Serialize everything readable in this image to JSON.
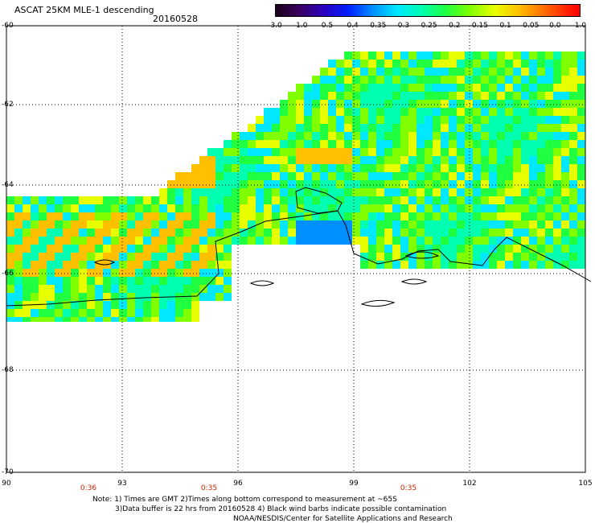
{
  "header": {
    "title": "ASCAT 25KM MLE-1 descending",
    "date": "20160528"
  },
  "colorbar": {
    "labels": [
      "-3.0",
      "-1.0",
      "-0.5",
      "-0.4",
      "-0.35",
      "-0.3",
      "-0.25",
      "-0.2",
      "-0.15",
      "-0.1",
      "-0.05",
      "0.0",
      "1.0"
    ],
    "colors": [
      "#1a0018",
      "#3a0060",
      "#2a00c0",
      "#0020ff",
      "#0090ff",
      "#00e8ff",
      "#00ffb0",
      "#20ff40",
      "#80ff00",
      "#e8ff00",
      "#ffc000",
      "#ff7000",
      "#ff2000"
    ]
  },
  "axes": {
    "lat_labels": [
      "-60",
      "-62",
      "-64",
      "-66",
      "-68",
      "-70"
    ],
    "lon_labels": [
      "90",
      "93",
      "96",
      "99",
      "102",
      "105"
    ],
    "time_labels": [
      "0:36",
      "0:35",
      "0:35"
    ]
  },
  "notes": {
    "line1": "Note: 1) Times are GMT 2)Times along bottom correspond to measurement at ~65S",
    "line2": "3)Data buffer is 22 hrs from 20160528 4) Black wind barbs indicate possible contamination",
    "line3": "NOAA/NESDIS/Center for Satellite Applications and Research"
  },
  "map": {
    "background": "#ffffff",
    "coastline_color": "#000000",
    "gridline_color": "#000000"
  }
}
